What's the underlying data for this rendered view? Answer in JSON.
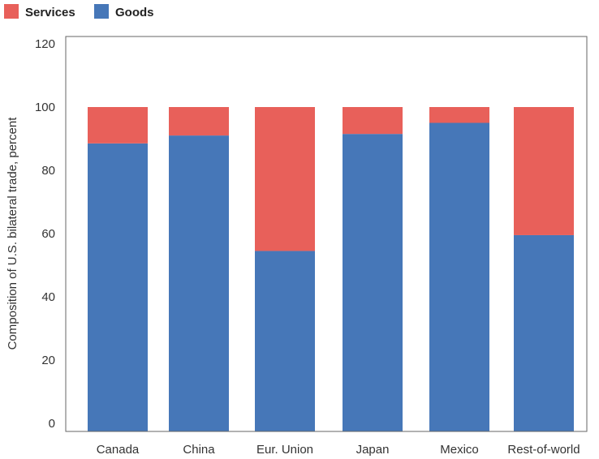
{
  "chart_data": {
    "type": "bar",
    "stacked": true,
    "categories": [
      "Canada",
      "China",
      "Eur. Union",
      "Japan",
      "Mexico",
      "Rest-of-world"
    ],
    "series": [
      {
        "name": "Goods",
        "color": "#4677b8",
        "values": [
          88.5,
          91.0,
          54.5,
          91.5,
          95.0,
          59.5
        ]
      },
      {
        "name": "Services",
        "color": "#e8605a",
        "values": [
          11.5,
          9.0,
          45.5,
          8.5,
          5.0,
          40.5
        ]
      }
    ],
    "legend": {
      "placement": "top-left",
      "entries": [
        {
          "label": "Services",
          "color": "#e8605a"
        },
        {
          "label": "Goods",
          "color": "#4677b8"
        }
      ]
    },
    "title": "",
    "xlabel": "",
    "ylabel": "Composition of U.S. bilateral trade, percent",
    "ylim": [
      0,
      120
    ],
    "yticks": [
      "0",
      "20",
      "40",
      "60",
      "80",
      "100",
      "120"
    ],
    "grid": false
  }
}
